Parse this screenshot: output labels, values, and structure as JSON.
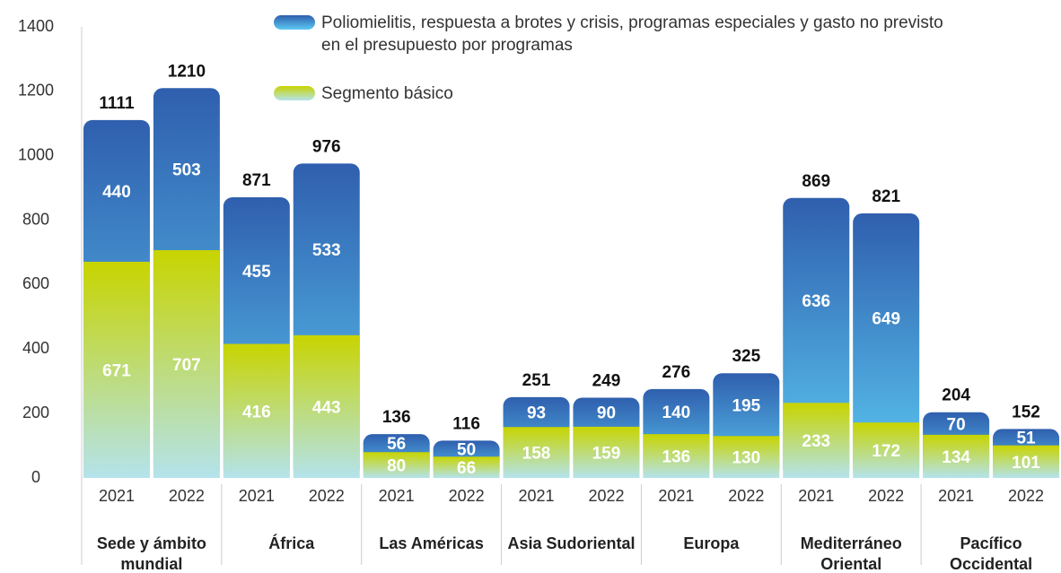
{
  "chart_data": {
    "type": "bar",
    "stacked": true,
    "categories": [
      "2021",
      "2022",
      "2021",
      "2022",
      "2021",
      "2022",
      "2021",
      "2022",
      "2021",
      "2022",
      "2021",
      "2022",
      "2021",
      "2022"
    ],
    "groups": [
      "Sede y ámbito mundial",
      "África",
      "Las Américas",
      "Asia Sudoriental",
      "Europa",
      "Mediterráneo Oriental",
      "Pacífico Occidental"
    ],
    "series": [
      {
        "name": "Segmento básico",
        "gradient": [
          "#c8d400",
          "#b4e3ec"
        ],
        "values": [
          671,
          707,
          416,
          443,
          80,
          66,
          158,
          159,
          136,
          130,
          233,
          172,
          134,
          101
        ]
      },
      {
        "name": "Poliomielitis, respuesta a brotes y crisis, programas especiales y gasto no previsto en el presupuesto por programas",
        "gradient": [
          "#2f5fae",
          "#5cc9f2"
        ],
        "values": [
          440,
          503,
          455,
          533,
          56,
          50,
          93,
          90,
          140,
          195,
          636,
          649,
          70,
          51
        ]
      }
    ],
    "totals": [
      1111,
      1210,
      871,
      976,
      136,
      116,
      251,
      249,
      276,
      325,
      869,
      821,
      204,
      152
    ],
    "ylim": [
      0,
      1400
    ],
    "yticks": [
      0,
      200,
      400,
      600,
      800,
      1000,
      1200,
      1400
    ],
    "grid": false
  }
}
